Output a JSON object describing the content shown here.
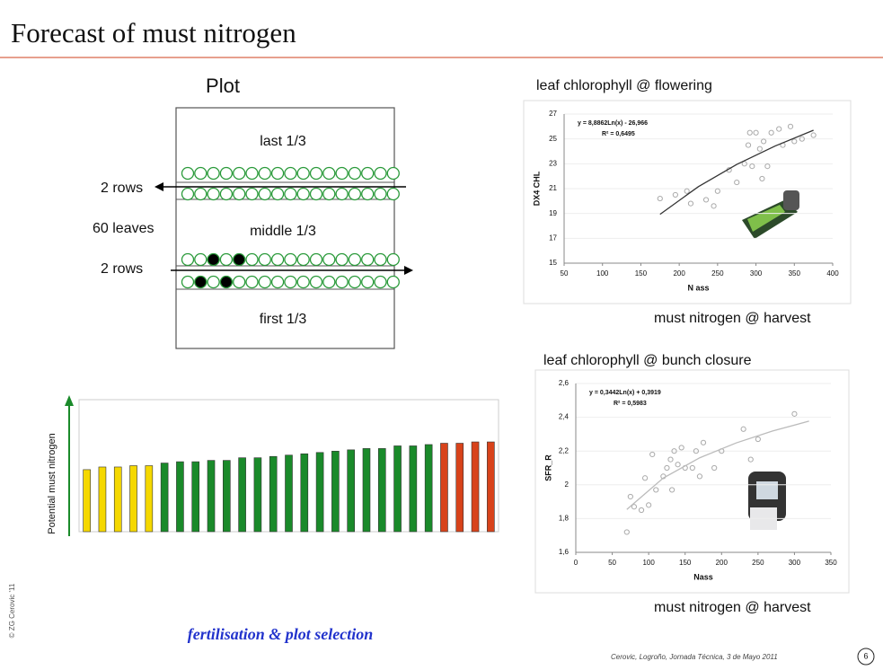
{
  "header": {
    "title": "Forecast of must nitrogen"
  },
  "plot_diagram": {
    "title": "Plot",
    "last": "last 1/3",
    "middle": "middle 1/3",
    "first": "first 1/3",
    "rows_top": "2 rows",
    "leaves": "60 leaves",
    "rows_bottom": "2 rows"
  },
  "captions": {
    "flowering": "leaf chlorophyll @ flowering",
    "harvest_1": "must nitrogen @ harvest",
    "bunch": "leaf chlorophyll @ bunch closure",
    "harvest_2": "must nitrogen @ harvest",
    "selection": "fertilisation & plot selection"
  },
  "footer": {
    "credit": "Cerovic, Logroño, Jornada Técnica, 3 de Mayo 2011",
    "page": "6",
    "copyright": "© ZG Cerovic '11"
  },
  "chart_data": [
    {
      "type": "bar",
      "y_label": "Potential must nitrogen",
      "categories": [
        null,
        null,
        null,
        null,
        null,
        null,
        null,
        null,
        null,
        null,
        null,
        null,
        null,
        null,
        null,
        null,
        null,
        null,
        null,
        null,
        null,
        null,
        null,
        null,
        null,
        null,
        null
      ],
      "values": [
        47,
        49,
        49,
        50,
        50,
        52,
        53,
        53,
        54,
        54,
        56,
        56,
        57,
        58,
        59,
        60,
        61,
        62,
        63,
        63,
        65,
        65,
        66,
        67,
        67,
        68,
        68
      ],
      "colors": [
        "#f5d800",
        "#f5d800",
        "#f5d800",
        "#f5d800",
        "#f5d800",
        "#1a8a2a",
        "#1a8a2a",
        "#1a8a2a",
        "#1a8a2a",
        "#1a8a2a",
        "#1a8a2a",
        "#1a8a2a",
        "#1a8a2a",
        "#1a8a2a",
        "#1a8a2a",
        "#1a8a2a",
        "#1a8a2a",
        "#1a8a2a",
        "#1a8a2a",
        "#1a8a2a",
        "#1a8a2a",
        "#1a8a2a",
        "#1a8a2a",
        "#d8431b",
        "#d8431b",
        "#d8431b",
        "#d8431b"
      ],
      "ylim": [
        0,
        100
      ]
    },
    {
      "type": "scatter",
      "x_label": "N ass",
      "y_label": "DX4 CHL",
      "equation": "y = 8,8862Ln(x) - 26,966",
      "r2": "R² = 0,6495",
      "xlim": [
        50,
        400
      ],
      "xticks": [
        50,
        100,
        150,
        200,
        250,
        300,
        350,
        400
      ],
      "ylim": [
        15,
        27
      ],
      "yticks": [
        15,
        17,
        19,
        21,
        23,
        25,
        27
      ],
      "x": [
        175,
        195,
        210,
        215,
        235,
        245,
        250,
        265,
        275,
        285,
        290,
        292,
        295,
        300,
        305,
        308,
        310,
        315,
        320,
        330,
        335,
        345,
        350,
        360,
        375
      ],
      "y": [
        20.2,
        20.5,
        20.8,
        19.8,
        20.1,
        19.6,
        20.8,
        22.5,
        21.5,
        23,
        24.5,
        25.5,
        22.8,
        25.5,
        24.2,
        21.8,
        24.8,
        22.8,
        25.5,
        25.8,
        24.5,
        26,
        24.8,
        25,
        25.3
      ],
      "trendline": {
        "x": [
          175,
          225,
          275,
          325,
          375
        ],
        "y": [
          18.93,
          21.16,
          22.95,
          24.43,
          25.7
        ]
      }
    },
    {
      "type": "scatter",
      "x_label": "Nass",
      "y_label": "SFR_R",
      "equation": "y = 0,3442Ln(x) + 0,3919",
      "r2": "R² = 0,5983",
      "xlim": [
        0,
        350
      ],
      "xticks": [
        0,
        50,
        100,
        150,
        200,
        250,
        300,
        350
      ],
      "ylim": [
        1.6,
        2.6
      ],
      "yticks": [
        {
          "value": 1.6,
          "label": "1,6"
        },
        {
          "value": 1.8,
          "label": "1,8"
        },
        {
          "value": 2,
          "label": "2"
        },
        {
          "value": 2.2,
          "label": "2,2"
        },
        {
          "value": 2.4,
          "label": "2,4"
        },
        {
          "value": 2.6,
          "label": "2,6"
        }
      ],
      "x": [
        70,
        75,
        80,
        90,
        95,
        100,
        105,
        110,
        120,
        125,
        130,
        132,
        135,
        140,
        145,
        150,
        160,
        165,
        170,
        175,
        190,
        200,
        230,
        240,
        250,
        300
      ],
      "y": [
        1.72,
        1.93,
        1.87,
        1.85,
        2.04,
        1.88,
        2.18,
        1.97,
        2.05,
        2.1,
        2.15,
        1.97,
        2.2,
        2.12,
        2.22,
        2.1,
        2.1,
        2.2,
        2.05,
        2.25,
        2.1,
        2.2,
        2.33,
        2.15,
        2.27,
        2.42
      ],
      "trendline": {
        "x": [
          70,
          120,
          170,
          220,
          270,
          320
        ],
        "y": [
          1.854,
          2.04,
          2.16,
          2.248,
          2.319,
          2.377
        ]
      }
    }
  ]
}
